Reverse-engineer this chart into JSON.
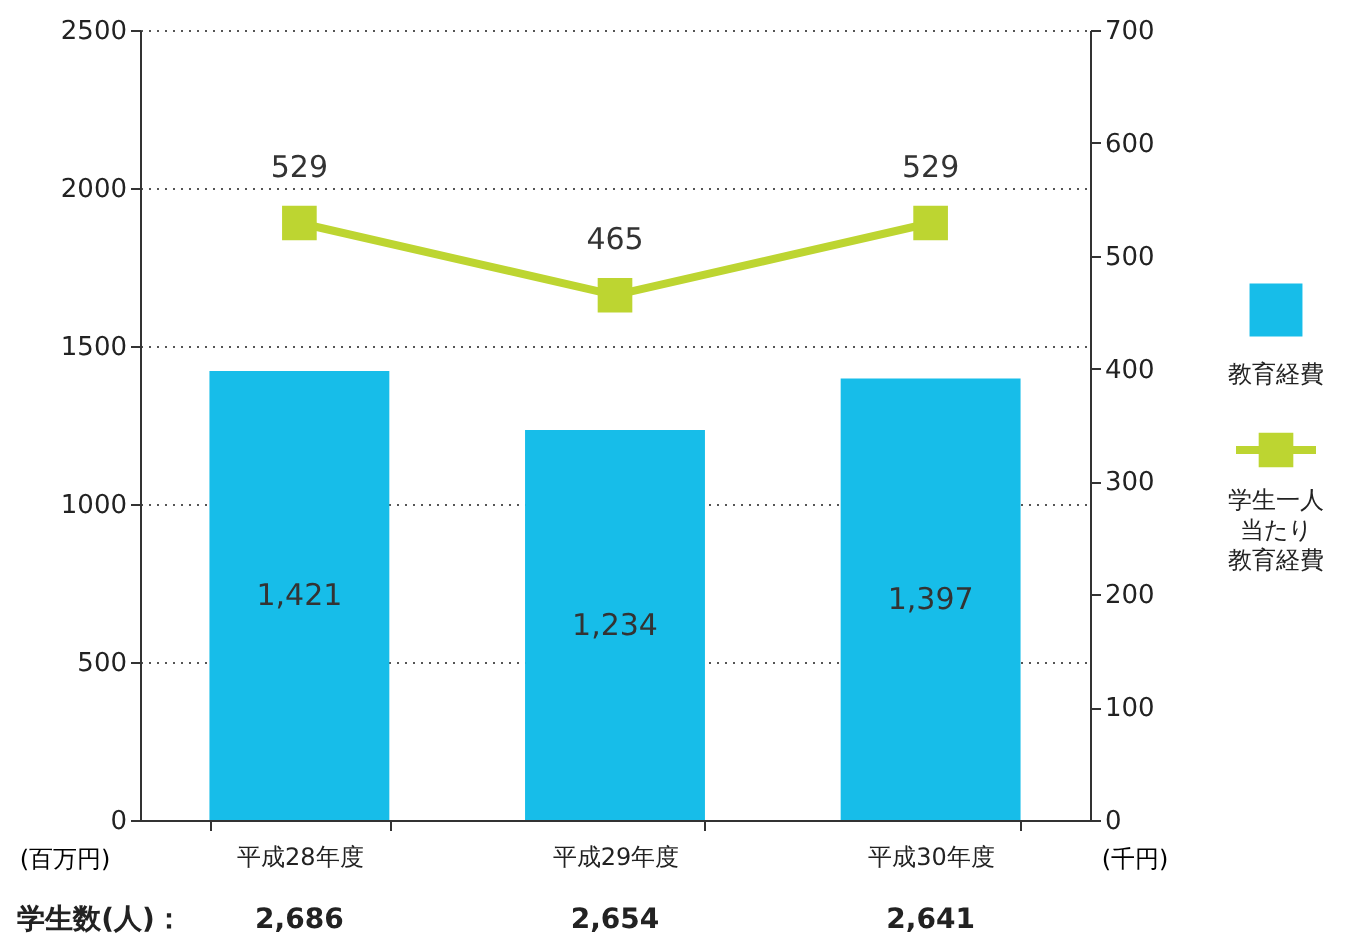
{
  "chart_data": {
    "type": "bar",
    "categories": [
      "平成28年度",
      "平成29年度",
      "平成30年度"
    ],
    "series": [
      {
        "name": "教育経費",
        "color": "#17bde9",
        "values": [
          1421,
          1234,
          1397
        ],
        "value_labels": [
          "1,421",
          "1,234",
          "1,397"
        ]
      },
      {
        "name": "学生一人当たり教育経費",
        "type": "line",
        "axis": "y2",
        "color": "#bdd531",
        "marker": "square",
        "values": [
          529,
          465,
          529
        ],
        "value_labels": [
          "529",
          "465",
          "529"
        ]
      }
    ],
    "ylabel": "(百万円)",
    "y2label": "(千円)",
    "ylim": [
      0,
      2500
    ],
    "yticks": [
      0,
      500,
      1000,
      1500,
      2000,
      2500
    ],
    "y2lim": [
      0,
      700
    ],
    "y2ticks": [
      0,
      100,
      200,
      300,
      400,
      500,
      600,
      700
    ],
    "grid": "y",
    "legend": "right",
    "annotations": [
      "学生数(人)：",
      "2,686",
      "2,654",
      "2,641"
    ]
  }
}
